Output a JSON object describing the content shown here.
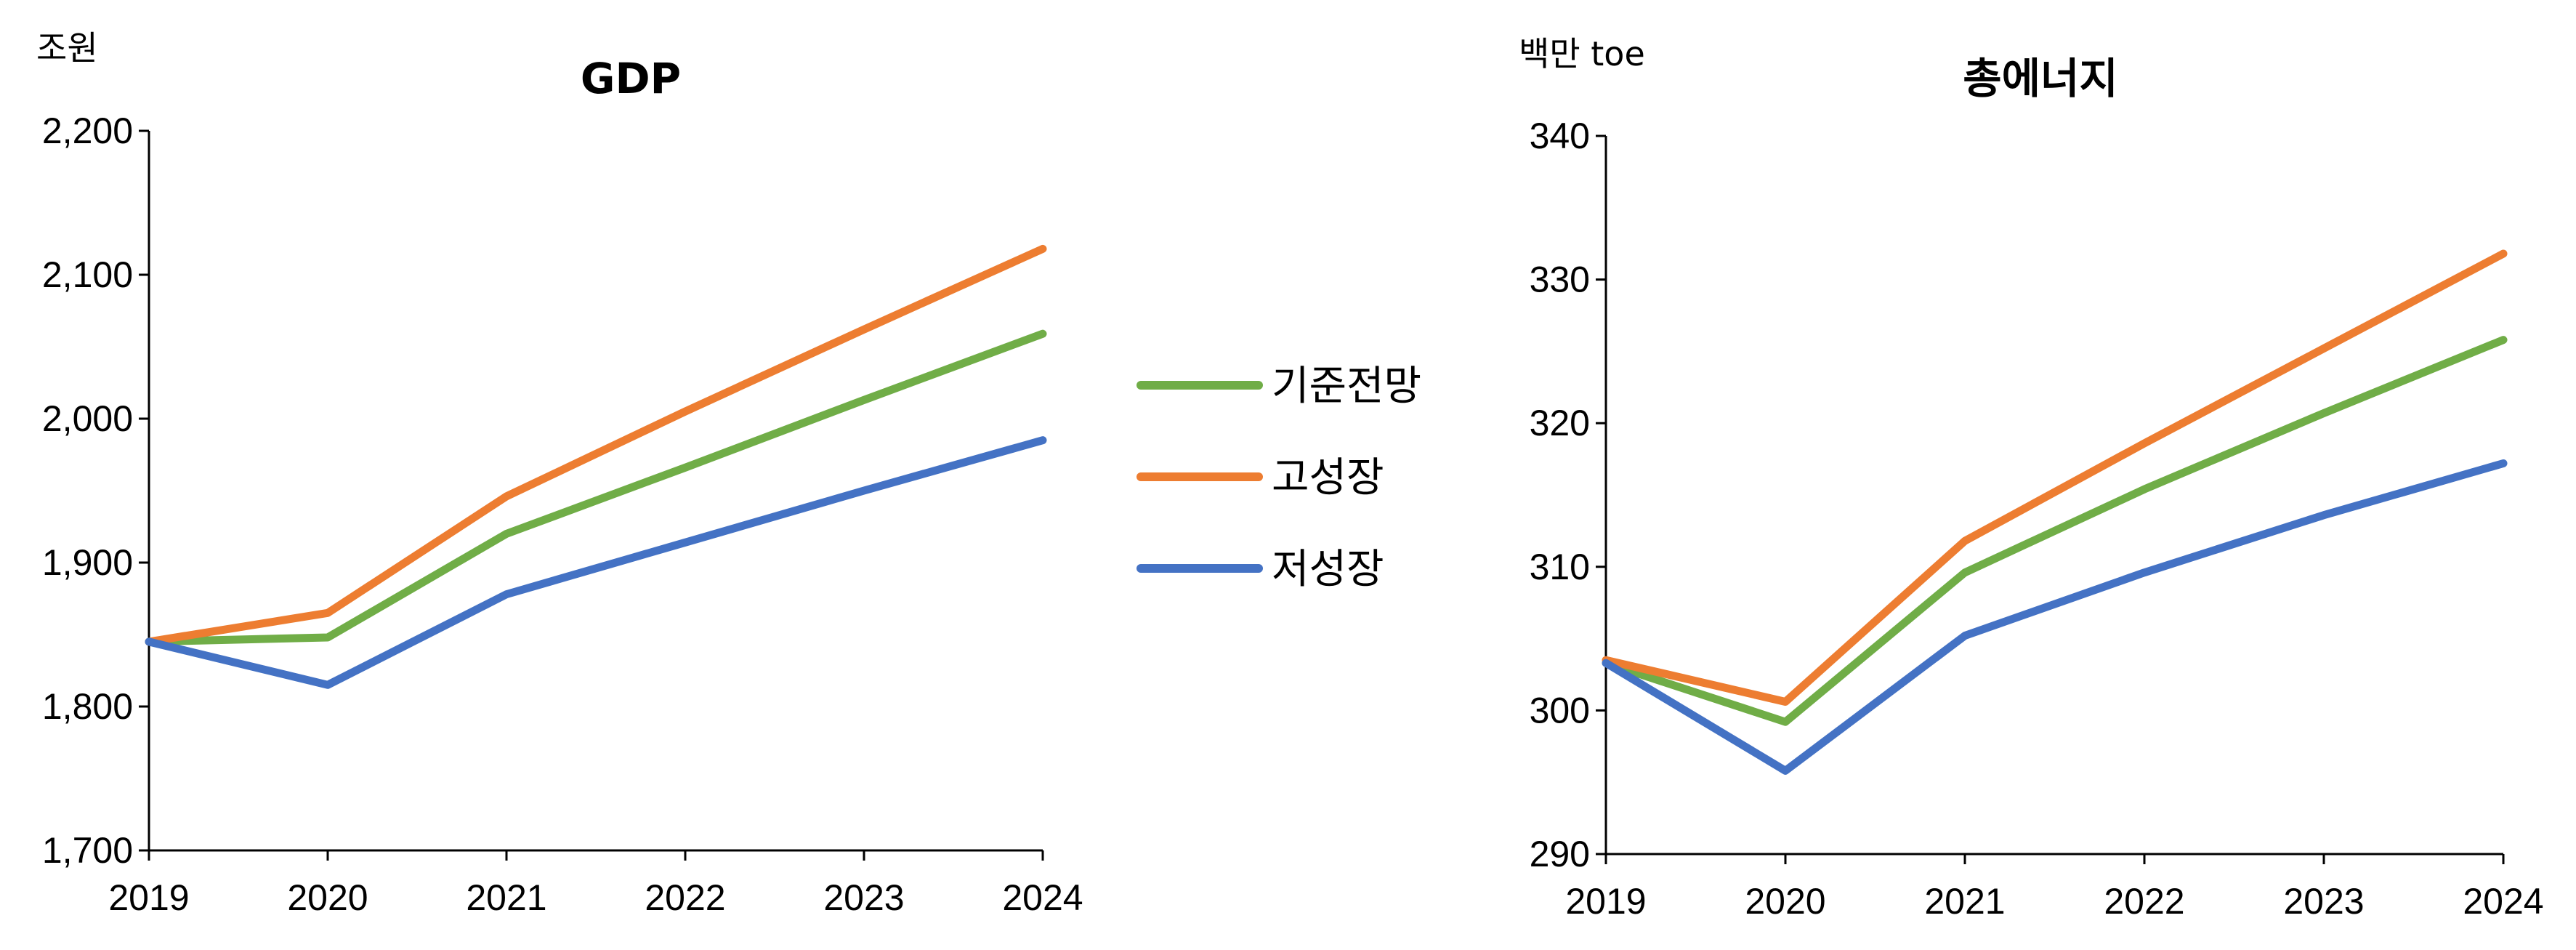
{
  "chart_data": [
    {
      "type": "line",
      "title": "GDP",
      "unit": "조원",
      "categories": [
        "2019",
        "2020",
        "2021",
        "2022",
        "2023",
        "2024"
      ],
      "ylim": [
        1700,
        2200
      ],
      "yticks": [
        "1,700",
        "1,800",
        "1,900",
        "2,000",
        "2,100",
        "2,200"
      ],
      "grid": false,
      "series": [
        {
          "name": "기준전망",
          "color": "#70AD47",
          "values": [
            1845,
            1848,
            1920,
            1966,
            2013,
            2059
          ]
        },
        {
          "name": "고성장",
          "color": "#ED7D31",
          "values": [
            1845,
            1865,
            1946,
            2005,
            2062,
            2118
          ]
        },
        {
          "name": "저성장",
          "color": "#4472C4",
          "values": [
            1845,
            1815,
            1878,
            1914,
            1950,
            1985
          ]
        }
      ]
    },
    {
      "type": "line",
      "title": "총에너지",
      "unit": "백만 toe",
      "categories": [
        "2019",
        "2020",
        "2021",
        "2022",
        "2023",
        "2024"
      ],
      "ylim": [
        290,
        340
      ],
      "yticks": [
        "290",
        "300",
        "310",
        "320",
        "330",
        "340"
      ],
      "grid": false,
      "series": [
        {
          "name": "기준전망",
          "color": "#70AD47",
          "values": [
            303.3,
            299.2,
            309.6,
            315.4,
            320.7,
            325.8
          ]
        },
        {
          "name": "고성장",
          "color": "#ED7D31",
          "values": [
            303.5,
            300.6,
            311.8,
            318.6,
            325.2,
            331.8
          ]
        },
        {
          "name": "저성장",
          "color": "#4472C4",
          "values": [
            303.3,
            295.8,
            305.2,
            309.6,
            313.6,
            317.2
          ]
        }
      ]
    }
  ],
  "legend": {
    "placement": "between-charts",
    "items": [
      {
        "label": "기준전망",
        "color": "#70AD47"
      },
      {
        "label": "고성장",
        "color": "#ED7D31"
      },
      {
        "label": "저성장",
        "color": "#4472C4"
      }
    ]
  }
}
